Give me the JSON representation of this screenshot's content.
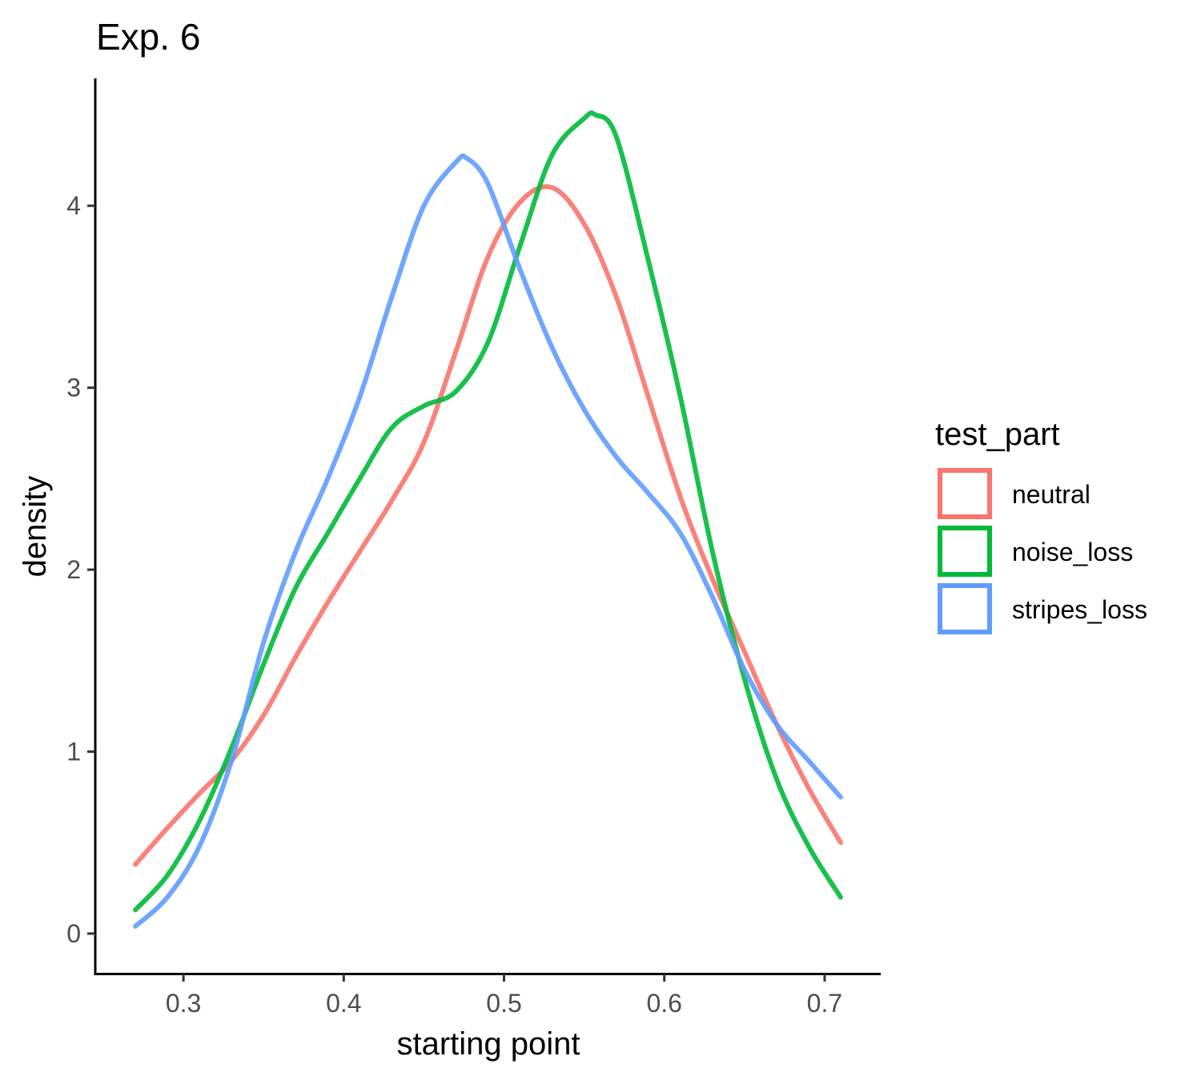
{
  "chart_data": {
    "type": "line",
    "title": "Exp. 6",
    "xlabel": "starting point",
    "ylabel": "density",
    "xlim": [
      0.245,
      0.735
    ],
    "ylim": [
      -0.22,
      4.7
    ],
    "x_ticks": [
      0.3,
      0.4,
      0.5,
      0.6,
      0.7
    ],
    "x_tick_labels": [
      "0.3",
      "0.4",
      "0.5",
      "0.6",
      "0.7"
    ],
    "y_ticks": [
      0,
      1,
      2,
      3,
      4
    ],
    "y_tick_labels": [
      "0",
      "1",
      "2",
      "3",
      "4"
    ],
    "grid": false,
    "legend": {
      "title": "test_part",
      "position": "right"
    },
    "series": [
      {
        "name": "neutral",
        "color": "#F8766D",
        "x": [
          0.27,
          0.29,
          0.31,
          0.33,
          0.35,
          0.37,
          0.39,
          0.41,
          0.43,
          0.45,
          0.47,
          0.49,
          0.51,
          0.53,
          0.55,
          0.57,
          0.59,
          0.61,
          0.63,
          0.65,
          0.67,
          0.69,
          0.71
        ],
        "y": [
          0.38,
          0.58,
          0.77,
          0.95,
          1.2,
          1.52,
          1.82,
          2.1,
          2.38,
          2.7,
          3.2,
          3.72,
          4.02,
          4.1,
          3.9,
          3.5,
          2.95,
          2.4,
          1.95,
          1.55,
          1.15,
          0.8,
          0.5
        ]
      },
      {
        "name": "noise_loss",
        "color": "#00BA38",
        "x": [
          0.27,
          0.29,
          0.31,
          0.33,
          0.35,
          0.37,
          0.39,
          0.41,
          0.43,
          0.45,
          0.47,
          0.49,
          0.51,
          0.53,
          0.55,
          0.557,
          0.57,
          0.59,
          0.61,
          0.63,
          0.65,
          0.67,
          0.69,
          0.71
        ],
        "y": [
          0.13,
          0.32,
          0.62,
          1.02,
          1.48,
          1.9,
          2.2,
          2.5,
          2.78,
          2.9,
          2.98,
          3.25,
          3.78,
          4.28,
          4.48,
          4.5,
          4.38,
          3.7,
          2.95,
          2.1,
          1.4,
          0.85,
          0.48,
          0.2
        ]
      },
      {
        "name": "stripes_loss",
        "color": "#619CFF",
        "x": [
          0.27,
          0.29,
          0.31,
          0.33,
          0.35,
          0.37,
          0.39,
          0.41,
          0.43,
          0.45,
          0.47,
          0.477,
          0.49,
          0.51,
          0.53,
          0.55,
          0.57,
          0.59,
          0.61,
          0.63,
          0.65,
          0.67,
          0.69,
          0.71
        ],
        "y": [
          0.04,
          0.2,
          0.48,
          0.95,
          1.6,
          2.1,
          2.5,
          2.95,
          3.5,
          4.0,
          4.24,
          4.26,
          4.12,
          3.65,
          3.22,
          2.88,
          2.62,
          2.42,
          2.2,
          1.85,
          1.45,
          1.15,
          0.95,
          0.75
        ]
      }
    ]
  }
}
